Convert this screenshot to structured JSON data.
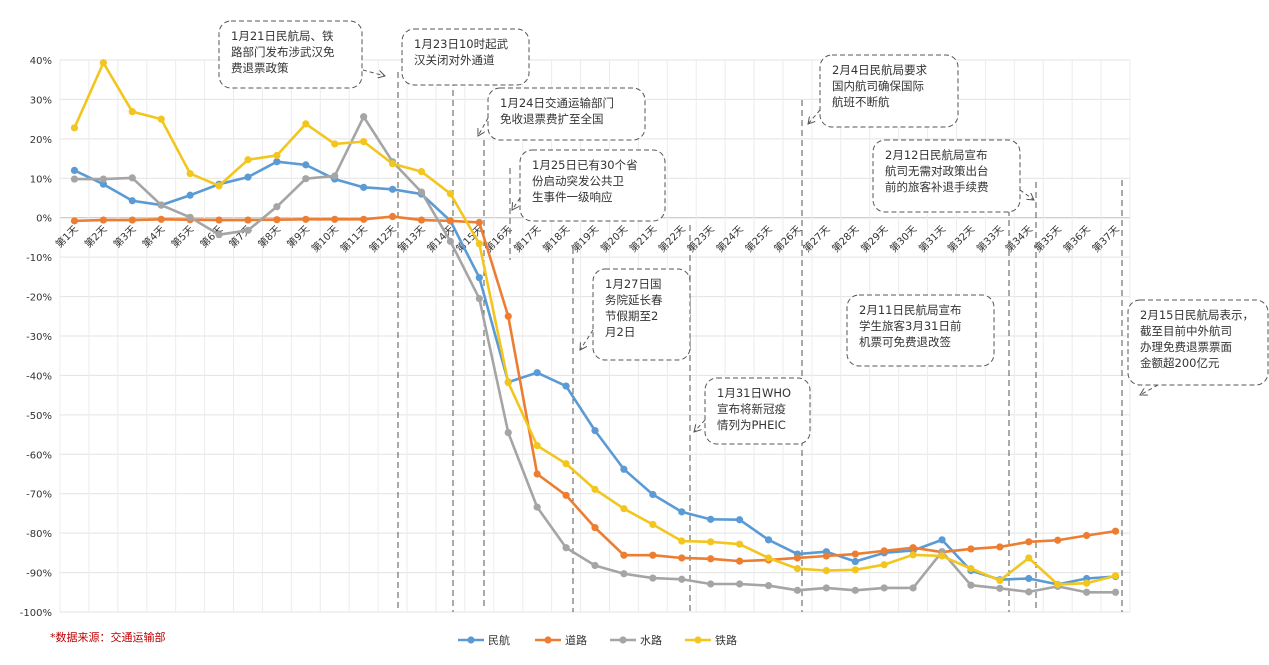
{
  "chart_data": {
    "type": "line",
    "categories": [
      "第1天",
      "第2天",
      "第3天",
      "第4天",
      "第5天",
      "第6天",
      "第7天",
      "第8天",
      "第9天",
      "第10天",
      "第11天",
      "第12天",
      "第13天",
      "第14天",
      "第15天",
      "第16天",
      "第17天",
      "第18天",
      "第19天",
      "第20天",
      "第21天",
      "第22天",
      "第23天",
      "第24天",
      "第25天",
      "第26天",
      "第27天",
      "第28天",
      "第29天",
      "第30天",
      "第31天",
      "第32天",
      "第33天",
      "第34天",
      "第35天",
      "第36天",
      "第37天"
    ],
    "y_ticks": [
      "40%",
      "30%",
      "20%",
      "10%",
      "0%",
      "-10%",
      "-20%",
      "-30%",
      "-40%",
      "-50%",
      "-60%",
      "-70%",
      "-80%",
      "-90%",
      "-100%"
    ],
    "ylim": [
      -100,
      40
    ],
    "grid": true,
    "legend_position": "bottom",
    "series": [
      {
        "name": "民航",
        "color": "#5b9bd5",
        "values": [
          12,
          8.5,
          4.3,
          3.2,
          5.7,
          8.5,
          10.3,
          14.2,
          13.4,
          9.8,
          7.7,
          7.2,
          6.0,
          -0.8,
          -15.2,
          -41.7,
          -39.3,
          -42.7,
          -54.0,
          -63.8,
          -70.2,
          -74.6,
          -76.5,
          -76.6,
          -81.7,
          -85.3,
          -84.7,
          -87.2,
          -85.0,
          -84.4,
          -81.7,
          -89.5,
          -91.8,
          -91.5,
          -93.0,
          -91.5,
          -91.0
        ]
      },
      {
        "name": "道路",
        "color": "#ed7d31",
        "values": [
          -0.8,
          -0.6,
          -0.6,
          -0.4,
          -0.5,
          -0.6,
          -0.6,
          -0.5,
          -0.4,
          -0.4,
          -0.4,
          0.3,
          -0.6,
          -0.8,
          -1.2,
          -25.0,
          -65.0,
          -70.4,
          -78.6,
          -85.6,
          -85.6,
          -86.3,
          -86.5,
          -87.1,
          -86.8,
          -86.3,
          -85.8,
          -85.3,
          -84.5,
          -83.7,
          -84.8,
          -84.0,
          -83.5,
          -82.2,
          -81.8,
          -80.6,
          -79.5
        ]
      },
      {
        "name": "水路",
        "color": "#a5a5a5",
        "values": [
          9.8,
          9.8,
          10.1,
          3.2,
          0.1,
          -4.3,
          -3.2,
          2.8,
          9.9,
          10.6,
          25.6,
          14.2,
          6.5,
          -6.0,
          -20.5,
          -54.5,
          -73.4,
          -83.7,
          -88.2,
          -90.3,
          -91.4,
          -91.7,
          -92.9,
          -92.9,
          -93.3,
          -94.5,
          -93.9,
          -94.5,
          -93.9,
          -93.9,
          -84.7,
          -93.2,
          -94.0,
          -94.9,
          -93.5,
          -95.0,
          -95.0
        ]
      },
      {
        "name": "铁路",
        "color": "#f2c61f",
        "values": [
          22.8,
          39.3,
          26.9,
          25.0,
          11.2,
          8.1,
          14.7,
          15.8,
          23.8,
          18.7,
          19.3,
          13.7,
          11.7,
          6.1,
          -6.6,
          -41.8,
          -57.8,
          -62.4,
          -68.9,
          -73.8,
          -77.8,
          -82.0,
          -82.2,
          -82.8,
          -86.3,
          -89.0,
          -89.5,
          -89.3,
          -88.0,
          -85.5,
          -85.8,
          -89.0,
          -92.0,
          -86.3,
          -93.0,
          -92.7,
          -90.8
        ]
      }
    ]
  },
  "source_note": "*数据来源：交通运输部",
  "annotations": [
    {
      "text": [
        "1月21日民航局、铁",
        "路部门发布涉武汉免",
        "费退票政策"
      ]
    },
    {
      "text": [
        "1月23日10时起武",
        "汉关闭对外通道"
      ]
    },
    {
      "text": [
        "1月24日交通运输部门",
        "免收退票费扩至全国"
      ]
    },
    {
      "text": [
        "1月25日已有30个省",
        "份启动突发公共卫",
        "生事件一级响应"
      ]
    },
    {
      "text": [
        "1月27日国",
        "务院延长春",
        "节假期至2",
        "月2日"
      ]
    },
    {
      "text": [
        "1月31日WHO",
        "宣布将新冠疫",
        "情列为PHEIC"
      ]
    },
    {
      "text": [
        "2月4日民航局要求",
        "国内航司确保国际",
        "航班不断航"
      ]
    },
    {
      "text": [
        "2月11日民航局宣布",
        "学生旅客3月31日前",
        "机票可免费退改签"
      ]
    },
    {
      "text": [
        "2月12日民航局宣布",
        "航司无需对政策出台",
        "前的旅客补退手续费"
      ]
    },
    {
      "text": [
        "2月15日民航局表示，",
        "截至目前中外航司",
        "办理免费退票票面",
        "金额超200亿元"
      ]
    }
  ]
}
